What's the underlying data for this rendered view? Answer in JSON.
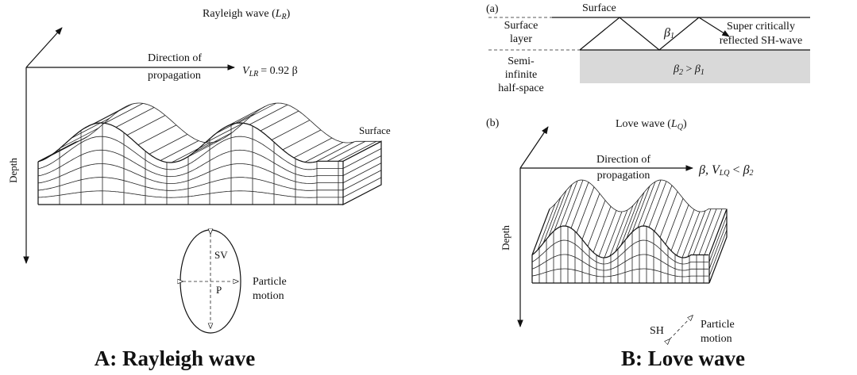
{
  "rayleigh": {
    "title": {
      "text": "Rayleigh wave (",
      "symbol": "L",
      "subscript": "R",
      "close": ")"
    },
    "direction": [
      "Direction of",
      "propagation"
    ],
    "velocity": {
      "symbol": "V",
      "subscript": "LR",
      "equation": "= 0.92 β"
    },
    "surface": "Surface",
    "depth": "Depth",
    "sv": "SV",
    "p": "P",
    "particle_motion": [
      "Particle",
      "motion"
    ],
    "caption": "A: Rayleigh wave"
  },
  "love": {
    "panel_a": "(a)",
    "surface": "Surface",
    "surface_layer": [
      "Surface",
      "layer"
    ],
    "beta1": {
      "symbol": "β",
      "subscript": "1"
    },
    "reflected": [
      "Super critically",
      "reflected SH-wave"
    ],
    "half_space": [
      "Semi-",
      "infinite",
      "half-space"
    ],
    "inequality": {
      "left": "β",
      "left_sub": "2",
      "relation": " > ",
      "right": "β",
      "right_sub": "1"
    },
    "panel_b": "(b)",
    "title": {
      "text": "Love wave (",
      "symbol": "L",
      "subscript": "Q",
      "close": ")"
    },
    "direction": [
      "Direction of",
      "propagation"
    ],
    "velocity": {
      "prefix": "β, ",
      "symbol": "V",
      "subscript": "LQ",
      "relation": " < ",
      "beta": "β",
      "beta_sub": "2"
    },
    "depth": "Depth",
    "sh": "SH",
    "particle_motion": [
      "Particle",
      "motion"
    ],
    "caption": "B: Love wave"
  }
}
